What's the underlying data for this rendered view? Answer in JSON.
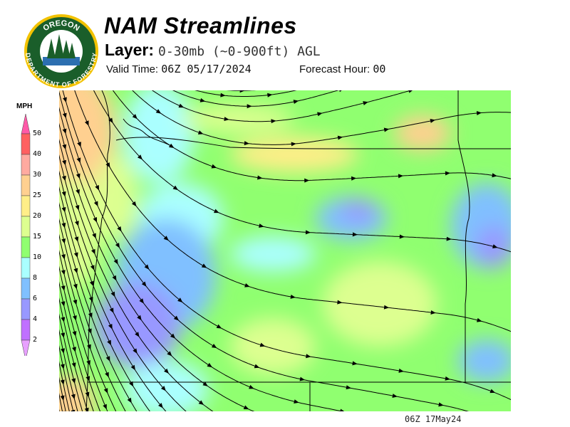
{
  "header": {
    "title": "NAM Streamlines",
    "layer_label": "Layer:",
    "layer_value": "0-30mb (~0-900ft) AGL",
    "valid_label": "Valid Time:",
    "valid_value": "06Z 05/17/2024",
    "forecast_label": "Forecast Hour:",
    "forecast_value": "00"
  },
  "logo": {
    "top_text": "OREGON",
    "bottom_text": "DEPARTMENT OF FORESTRY"
  },
  "legend": {
    "unit": "MPH",
    "ticks": [
      "50",
      "40",
      "30",
      "25",
      "20",
      "15",
      "10",
      "8",
      "6",
      "4",
      "2"
    ],
    "colors": [
      "#ff5aa8",
      "#ff6060",
      "#ffaaa0",
      "#ffd090",
      "#ffee88",
      "#ddff90",
      "#90ff70",
      "#aaffff",
      "#80c0ff",
      "#9898ff",
      "#c070ff",
      "#e8a0ff"
    ]
  },
  "map": {
    "type": "wind streamlines over Oregon/Washington",
    "colors": {
      "land_green": "#90ff70",
      "light_green": "#ddff90",
      "cyan": "#aaffff",
      "blue": "#80c0ff",
      "yellow": "#ffee88",
      "orange": "#ffd090",
      "purple": "#9898ff"
    }
  },
  "footer": {
    "stamp": "06Z 17May24"
  }
}
